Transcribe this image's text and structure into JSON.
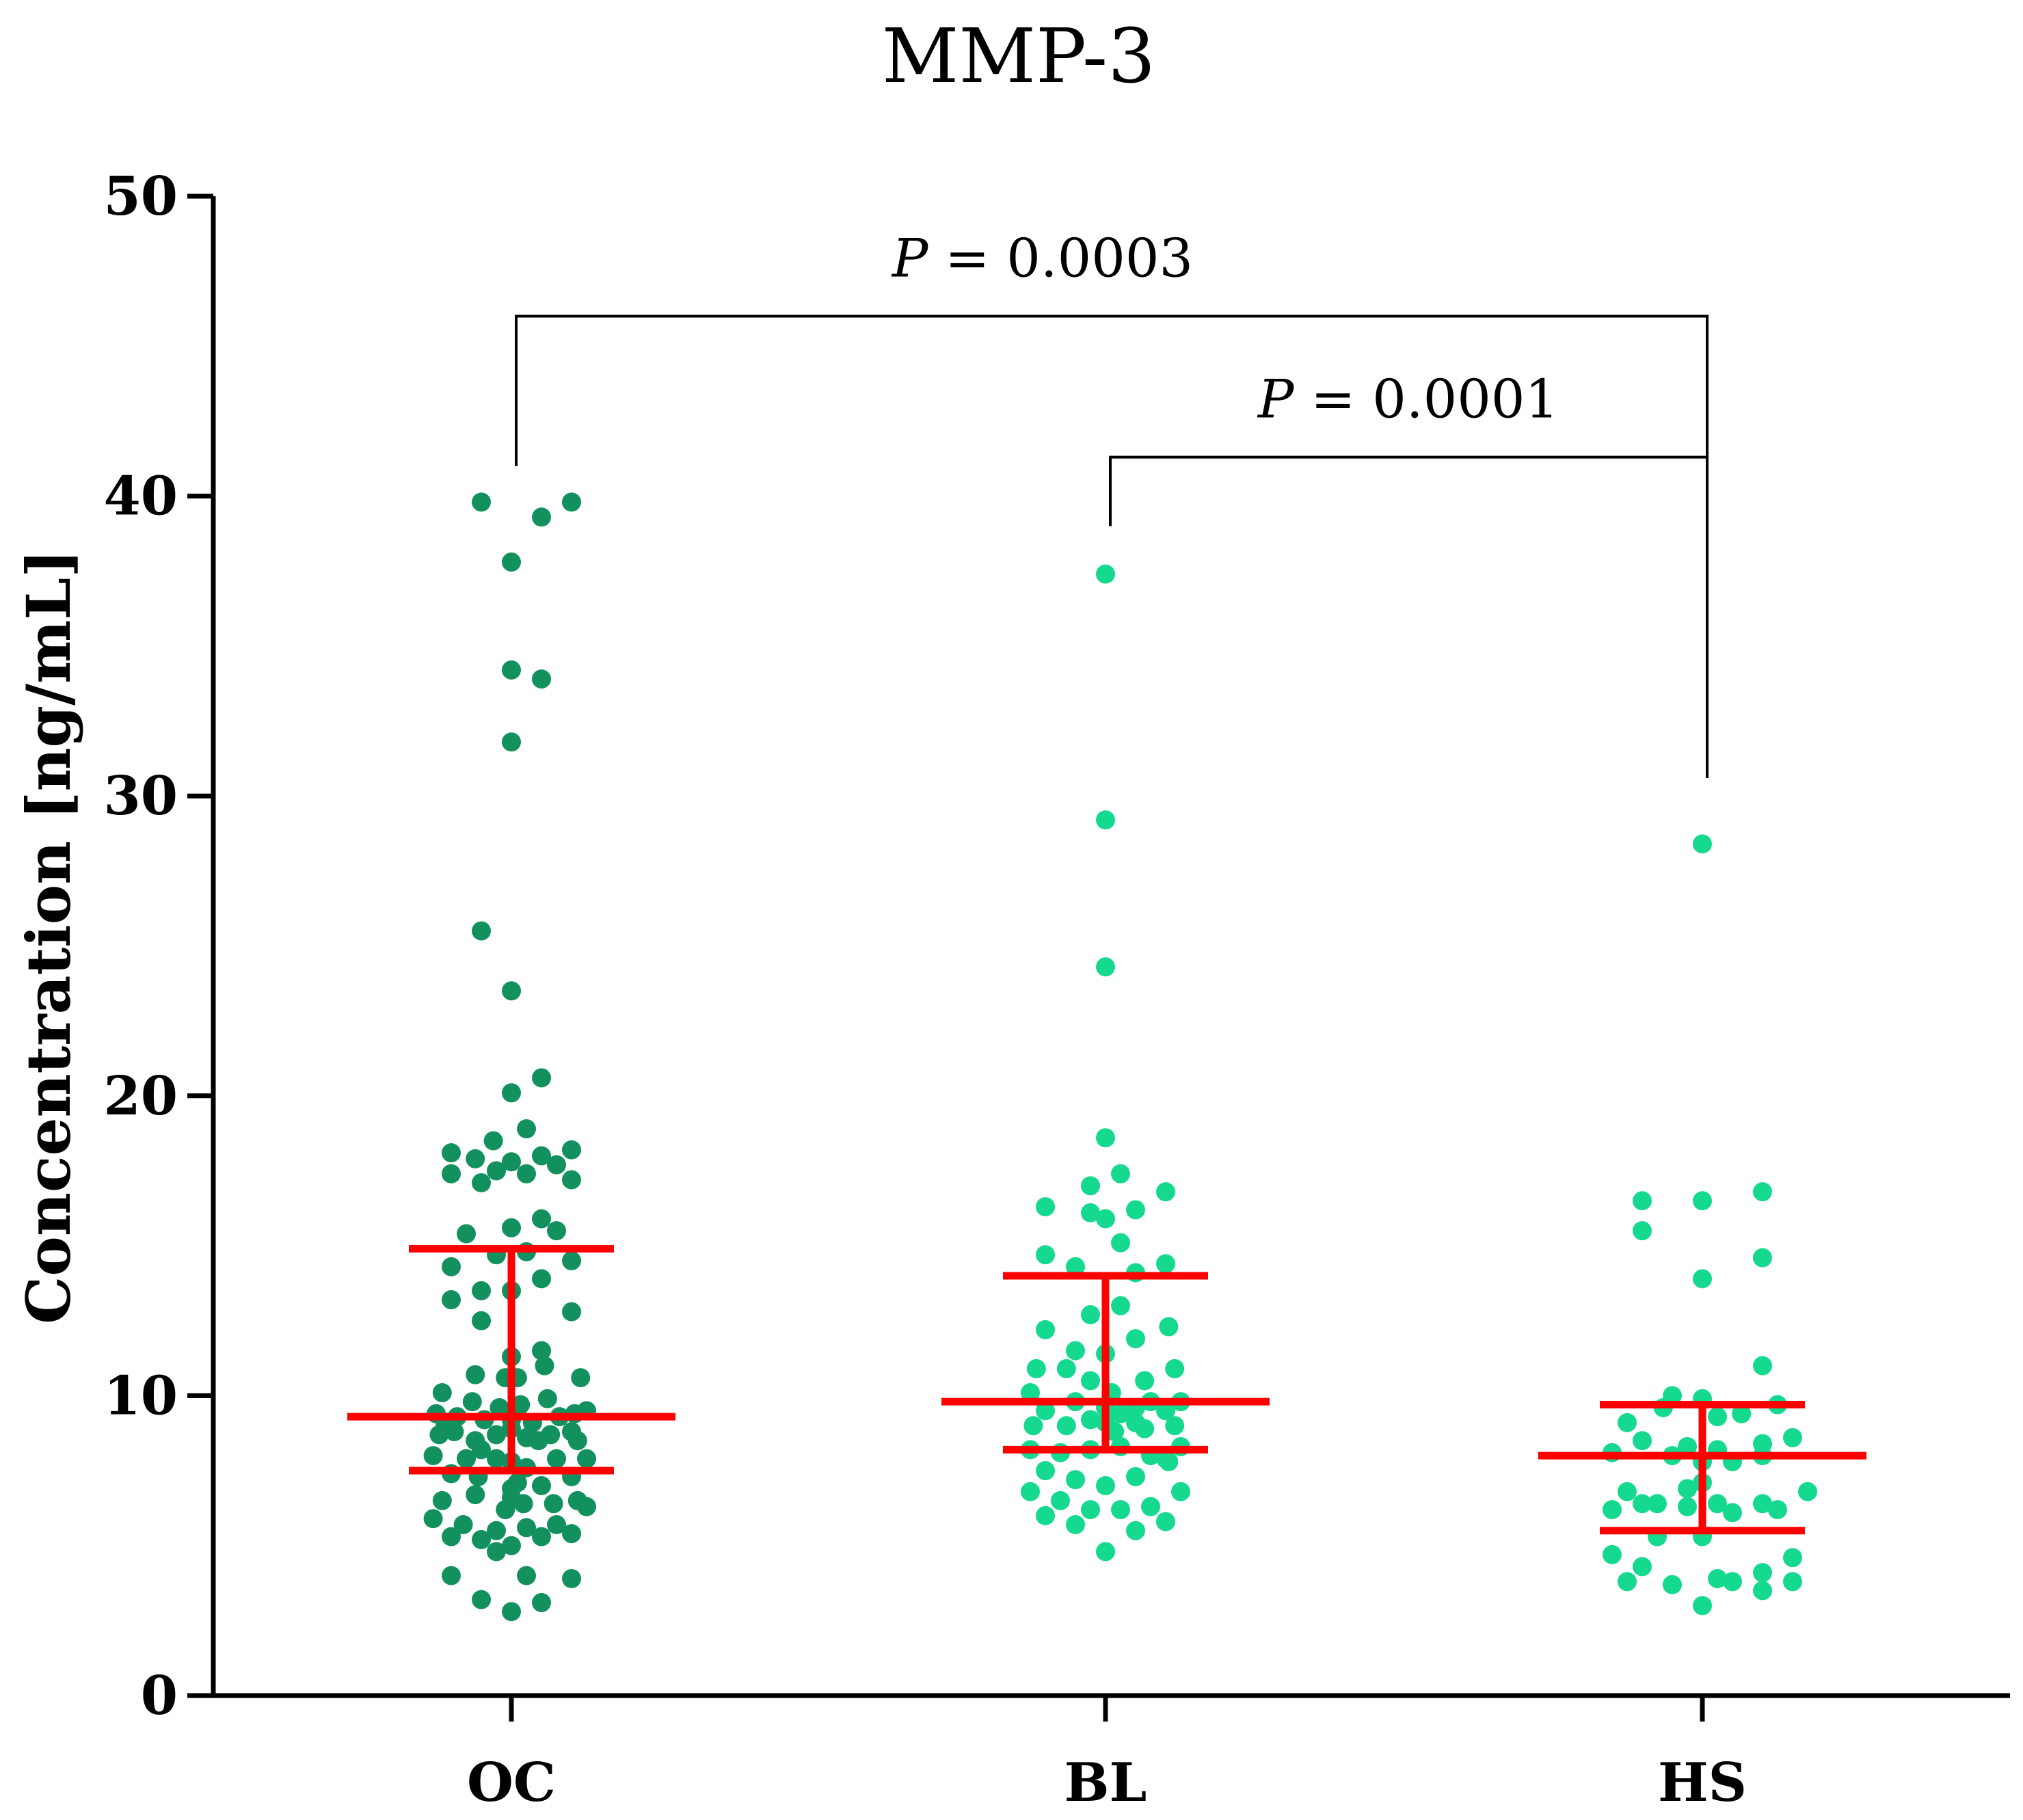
{
  "chart_data": {
    "type": "scatter",
    "title": "MMP-3",
    "xlabel": "",
    "ylabel": "Concentration [ng/mL]",
    "ylim": [
      0,
      50
    ],
    "yticks": [
      "0",
      "10",
      "20",
      "30",
      "40",
      "50"
    ],
    "categories": [
      "OC",
      "BL",
      "HS"
    ],
    "colors": {
      "OC": "#12915F",
      "BL": "#14D98E",
      "HS": "#14D98E",
      "summary": "#FF0000",
      "axis": "#000000"
    },
    "summary_stats": [
      {
        "group": "OC",
        "median": 9.3,
        "q1": 7.5,
        "q3": 14.9
      },
      {
        "group": "BL",
        "median": 9.8,
        "q1": 8.2,
        "q3": 14.0
      },
      {
        "group": "HS",
        "median": 8.0,
        "q1": 5.5,
        "q3": 9.7
      }
    ],
    "comparisons": [
      {
        "from": "OC",
        "to": "HS",
        "label_prefix": "P",
        "label_value": " = 0.0003",
        "bracket_y": 46.0,
        "left_tick_bottom": 41.0,
        "right_tick_bottom": 30.6
      },
      {
        "from": "BL",
        "to": "HS",
        "label_prefix": "P",
        "label_value": " = 0.0001",
        "bracket_y": 41.3,
        "left_tick_bottom": 39.0,
        "right_tick_bottom": 30.6
      }
    ],
    "series": [
      {
        "name": "OC",
        "points": [
          [
            -0.1,
            39.8
          ],
          [
            0.0,
            37.8
          ],
          [
            0.1,
            39.3
          ],
          [
            0.2,
            39.8
          ],
          [
            0.0,
            34.2
          ],
          [
            0.1,
            33.9
          ],
          [
            0.0,
            31.8
          ],
          [
            -0.1,
            25.5
          ],
          [
            0.0,
            23.5
          ],
          [
            0.1,
            20.6
          ],
          [
            0.0,
            20.1
          ],
          [
            -0.2,
            18.1
          ],
          [
            -0.12,
            17.9
          ],
          [
            -0.06,
            18.5
          ],
          [
            0.0,
            17.8
          ],
          [
            0.05,
            18.9
          ],
          [
            0.1,
            18.0
          ],
          [
            0.15,
            17.7
          ],
          [
            0.2,
            18.2
          ],
          [
            -0.2,
            17.4
          ],
          [
            -0.1,
            17.1
          ],
          [
            -0.05,
            17.5
          ],
          [
            0.05,
            17.4
          ],
          [
            0.2,
            17.2
          ],
          [
            -0.15,
            15.4
          ],
          [
            0.0,
            15.6
          ],
          [
            0.1,
            15.9
          ],
          [
            0.15,
            15.5
          ],
          [
            -0.2,
            14.3
          ],
          [
            -0.05,
            14.7
          ],
          [
            0.05,
            14.8
          ],
          [
            0.2,
            14.5
          ],
          [
            -0.2,
            13.2
          ],
          [
            -0.1,
            13.5
          ],
          [
            0.0,
            13.5
          ],
          [
            0.1,
            13.9
          ],
          [
            -0.1,
            12.5
          ],
          [
            0.2,
            12.8
          ],
          [
            0.0,
            11.3
          ],
          [
            0.1,
            11.5
          ],
          [
            0.11,
            11.0
          ],
          [
            -0.23,
            10.1
          ],
          [
            -0.12,
            10.7
          ],
          [
            -0.02,
            10.6
          ],
          [
            0.02,
            10.6
          ],
          [
            0.23,
            10.6
          ],
          [
            -0.25,
            9.4
          ],
          [
            -0.22,
            9.0
          ],
          [
            -0.18,
            9.3
          ],
          [
            -0.13,
            9.8
          ],
          [
            -0.09,
            9.2
          ],
          [
            -0.04,
            9.6
          ],
          [
            0.0,
            9.2
          ],
          [
            0.03,
            9.7
          ],
          [
            0.07,
            9.1
          ],
          [
            0.12,
            9.9
          ],
          [
            0.16,
            9.3
          ],
          [
            0.21,
            9.4
          ],
          [
            0.25,
            9.5
          ],
          [
            -0.24,
            8.7
          ],
          [
            -0.19,
            8.8
          ],
          [
            -0.12,
            8.5
          ],
          [
            -0.05,
            8.7
          ],
          [
            0.0,
            8.9
          ],
          [
            0.05,
            8.6
          ],
          [
            0.09,
            8.5
          ],
          [
            0.13,
            8.7
          ],
          [
            0.2,
            8.8
          ],
          [
            0.22,
            8.5
          ],
          [
            -0.26,
            8.0
          ],
          [
            -0.15,
            7.9
          ],
          [
            -0.1,
            8.2
          ],
          [
            -0.05,
            7.9
          ],
          [
            0.0,
            7.8
          ],
          [
            0.05,
            7.6
          ],
          [
            0.15,
            7.9
          ],
          [
            0.25,
            7.9
          ],
          [
            -0.2,
            7.4
          ],
          [
            -0.11,
            7.3
          ],
          [
            0.02,
            7.1
          ],
          [
            0.1,
            7.0
          ],
          [
            0.2,
            7.3
          ],
          [
            -0.23,
            6.5
          ],
          [
            -0.12,
            6.7
          ],
          [
            0.0,
            6.9
          ],
          [
            0.0,
            6.6
          ],
          [
            0.04,
            6.4
          ],
          [
            0.14,
            6.4
          ],
          [
            0.22,
            6.5
          ],
          [
            0.25,
            6.3
          ],
          [
            -0.02,
            6.2
          ],
          [
            -0.26,
            5.9
          ],
          [
            -0.16,
            5.7
          ],
          [
            -0.05,
            5.5
          ],
          [
            0.05,
            5.6
          ],
          [
            0.15,
            5.7
          ],
          [
            0.2,
            5.4
          ],
          [
            -0.2,
            5.3
          ],
          [
            -0.1,
            5.2
          ],
          [
            0.1,
            5.3
          ],
          [
            -0.05,
            4.8
          ],
          [
            0.0,
            5.0
          ],
          [
            -0.2,
            4.0
          ],
          [
            0.05,
            4.0
          ],
          [
            0.2,
            3.9
          ],
          [
            -0.1,
            3.2
          ],
          [
            0.1,
            3.1
          ],
          [
            0.0,
            2.8
          ]
        ]
      },
      {
        "name": "BL",
        "points": [
          [
            0.0,
            37.4
          ],
          [
            0.0,
            29.2
          ],
          [
            0.0,
            24.3
          ],
          [
            0.0,
            18.6
          ],
          [
            -0.05,
            17.0
          ],
          [
            0.05,
            17.4
          ],
          [
            0.2,
            16.8
          ],
          [
            -0.2,
            16.3
          ],
          [
            -0.05,
            16.1
          ],
          [
            0.0,
            15.9
          ],
          [
            0.1,
            16.2
          ],
          [
            -0.2,
            14.7
          ],
          [
            -0.1,
            14.3
          ],
          [
            0.05,
            15.1
          ],
          [
            0.1,
            14.1
          ],
          [
            0.2,
            14.4
          ],
          [
            -0.2,
            12.2
          ],
          [
            -0.05,
            12.7
          ],
          [
            0.05,
            13.0
          ],
          [
            0.1,
            11.9
          ],
          [
            0.21,
            12.3
          ],
          [
            -0.1,
            11.5
          ],
          [
            0.0,
            11.4
          ],
          [
            -0.25,
            10.1
          ],
          [
            -0.23,
            10.9
          ],
          [
            -0.13,
            10.9
          ],
          [
            -0.05,
            10.5
          ],
          [
            0.02,
            10.1
          ],
          [
            0.13,
            10.5
          ],
          [
            0.23,
            10.9
          ],
          [
            -0.2,
            9.5
          ],
          [
            -0.1,
            9.8
          ],
          [
            -0.05,
            9.2
          ],
          [
            0.0,
            9.6
          ],
          [
            0.05,
            9.4
          ],
          [
            0.1,
            9.6
          ],
          [
            0.15,
            9.8
          ],
          [
            0.2,
            9.5
          ],
          [
            0.25,
            9.8
          ],
          [
            -0.24,
            9.0
          ],
          [
            -0.13,
            9.0
          ],
          [
            0.0,
            9.1
          ],
          [
            0.03,
            8.8
          ],
          [
            0.1,
            9.1
          ],
          [
            0.13,
            8.9
          ],
          [
            0.23,
            9.0
          ],
          [
            -0.25,
            8.2
          ],
          [
            -0.15,
            8.1
          ],
          [
            -0.05,
            8.2
          ],
          [
            0.05,
            8.3
          ],
          [
            0.15,
            8.0
          ],
          [
            0.25,
            8.3
          ],
          [
            0.21,
            7.8
          ],
          [
            -0.2,
            7.5
          ],
          [
            -0.1,
            7.2
          ],
          [
            0.0,
            7.0
          ],
          [
            0.1,
            7.3
          ],
          [
            0.2,
            7.9
          ],
          [
            -0.25,
            6.8
          ],
          [
            -0.15,
            6.5
          ],
          [
            -0.05,
            6.2
          ],
          [
            0.05,
            6.2
          ],
          [
            0.15,
            6.3
          ],
          [
            0.25,
            6.8
          ],
          [
            -0.2,
            6.0
          ],
          [
            -0.1,
            5.7
          ],
          [
            0.1,
            5.5
          ],
          [
            0.2,
            5.8
          ],
          [
            0.0,
            4.8
          ]
        ]
      },
      {
        "name": "HS",
        "points": [
          [
            0.0,
            28.4
          ],
          [
            -0.2,
            16.5
          ],
          [
            0.0,
            16.5
          ],
          [
            0.2,
            16.8
          ],
          [
            -0.2,
            15.5
          ],
          [
            0.2,
            14.6
          ],
          [
            0.0,
            13.9
          ],
          [
            0.2,
            11.0
          ],
          [
            -0.13,
            9.6
          ],
          [
            -0.1,
            10.0
          ],
          [
            0.0,
            9.9
          ],
          [
            0.05,
            9.3
          ],
          [
            0.13,
            9.4
          ],
          [
            0.25,
            9.7
          ],
          [
            -0.25,
            9.1
          ],
          [
            -0.2,
            8.5
          ],
          [
            -0.05,
            8.3
          ],
          [
            0.05,
            8.2
          ],
          [
            0.2,
            8.4
          ],
          [
            0.3,
            8.6
          ],
          [
            -0.3,
            8.1
          ],
          [
            -0.1,
            8.0
          ],
          [
            0.0,
            7.8
          ],
          [
            0.1,
            7.8
          ],
          [
            0.2,
            8.0
          ],
          [
            -0.25,
            6.8
          ],
          [
            -0.05,
            6.9
          ],
          [
            0.0,
            7.1
          ],
          [
            -0.2,
            6.4
          ],
          [
            -0.15,
            6.4
          ],
          [
            -0.05,
            6.3
          ],
          [
            0.05,
            6.4
          ],
          [
            0.1,
            6.1
          ],
          [
            0.2,
            6.4
          ],
          [
            0.25,
            6.2
          ],
          [
            0.35,
            6.8
          ],
          [
            -0.3,
            6.2
          ],
          [
            -0.15,
            5.3
          ],
          [
            0.0,
            5.3
          ],
          [
            -0.3,
            4.7
          ],
          [
            0.3,
            4.6
          ],
          [
            -0.2,
            4.3
          ],
          [
            0.2,
            4.1
          ],
          [
            -0.25,
            3.8
          ],
          [
            -0.1,
            3.7
          ],
          [
            0.05,
            3.9
          ],
          [
            0.1,
            3.8
          ],
          [
            0.2,
            3.5
          ],
          [
            0.3,
            3.8
          ],
          [
            0.0,
            3.0
          ]
        ]
      }
    ]
  }
}
